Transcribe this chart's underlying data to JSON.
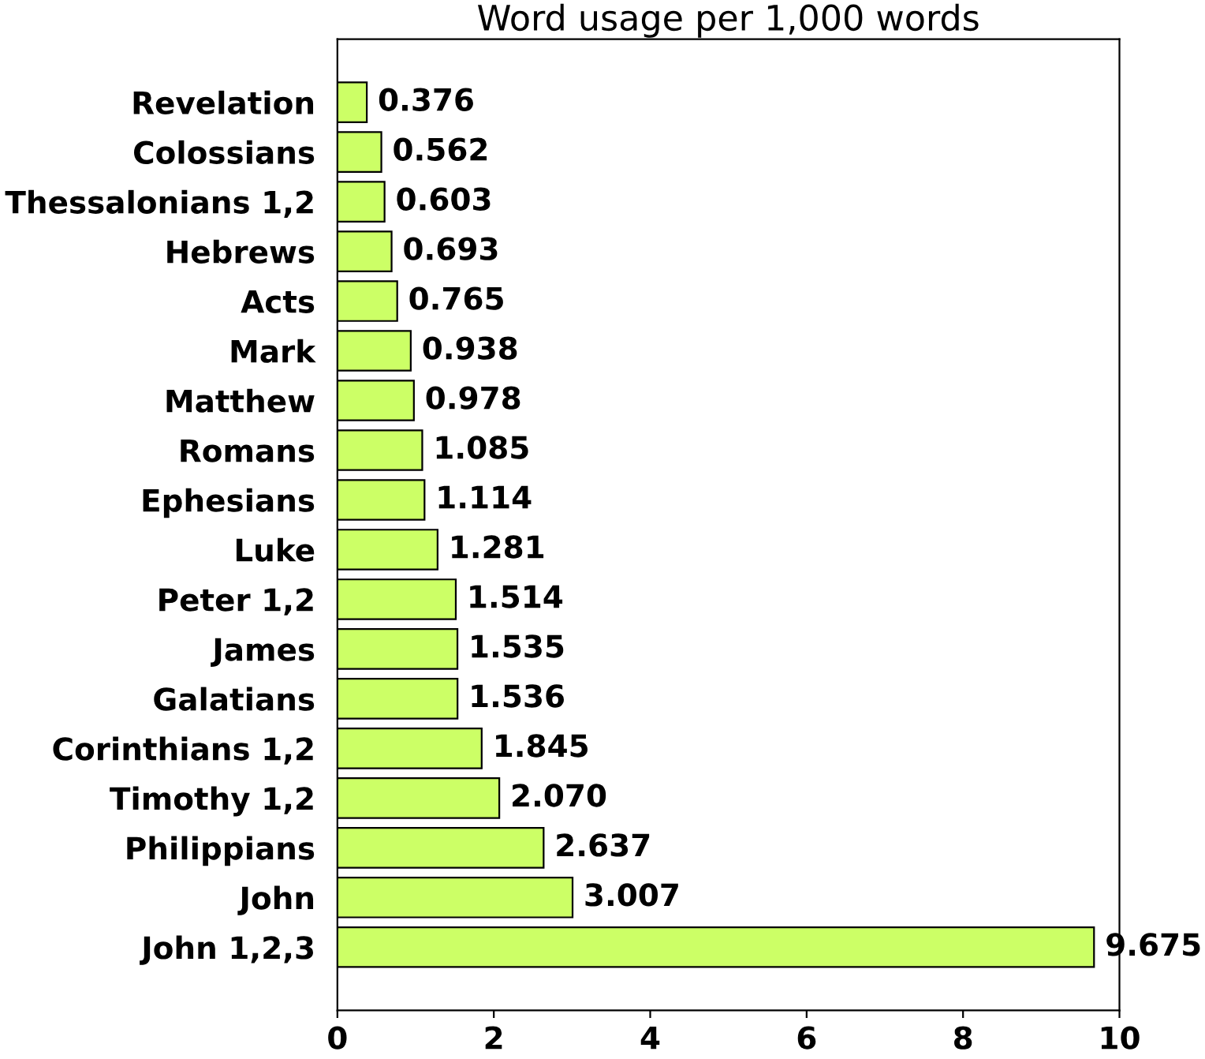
{
  "chart_data": {
    "type": "bar",
    "orientation": "horizontal",
    "title": "Word usage per 1,000 words",
    "categories": [
      "Revelation",
      "Colossians",
      "Thessalonians 1,2",
      "Hebrews",
      "Acts",
      "Mark",
      "Matthew",
      "Romans",
      "Ephesians",
      "Luke",
      "Peter 1,2",
      "James",
      "Galatians",
      "Corinthians 1,2",
      "Timothy 1,2",
      "Philippians",
      "John",
      "John 1,2,3"
    ],
    "values": [
      0.376,
      0.562,
      0.603,
      0.693,
      0.765,
      0.938,
      0.978,
      1.085,
      1.114,
      1.281,
      1.514,
      1.535,
      1.536,
      1.845,
      2.07,
      2.637,
      3.007,
      9.675
    ],
    "value_labels": [
      "0.376",
      "0.562",
      "0.603",
      "0.693",
      "0.765",
      "0.938",
      "0.978",
      "1.085",
      "1.114",
      "1.281",
      "1.514",
      "1.535",
      "1.536",
      "1.845",
      "2.070",
      "2.637",
      "3.007",
      "9.675"
    ],
    "color": "#ccff66",
    "xlim": [
      0,
      10
    ],
    "xticks": [
      0,
      2,
      4,
      6,
      8,
      10
    ],
    "grid": false,
    "legend": false
  }
}
